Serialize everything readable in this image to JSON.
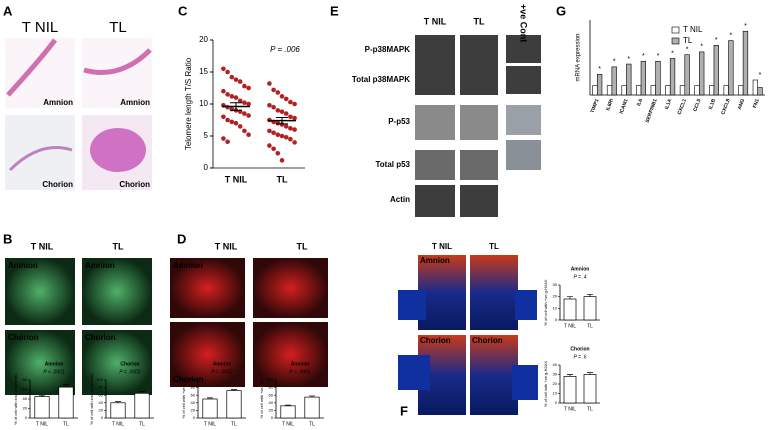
{
  "panels": {
    "A": {
      "label": "A",
      "header": [
        "T NIL",
        "TL"
      ],
      "images": [
        "Amnion",
        "Amnion",
        "Chorion",
        "Chorion"
      ]
    },
    "B": {
      "label": "B",
      "header": [
        "T NIL",
        "TL"
      ],
      "images": [
        "Amnion",
        "Amnion",
        "Chorion",
        "Chorion"
      ]
    },
    "C": {
      "label": "C"
    },
    "D": {
      "label": "D",
      "header": [
        "T NIL",
        "TL"
      ],
      "images": [
        "Amnion",
        "",
        "Chorion",
        ""
      ]
    },
    "E": {
      "label": "E",
      "columns": [
        "T NIL",
        "TL",
        "+ve Cont"
      ],
      "rows": [
        "P-p38MAPK",
        "Total p38MAPK",
        "P-p53",
        "Total p53",
        "Actin"
      ]
    },
    "F": {
      "label": "F",
      "header": [
        "T NIL",
        "TL"
      ],
      "images": [
        "Amnion",
        "",
        "Chorion",
        "Chorion"
      ]
    },
    "G": {
      "label": "G"
    }
  },
  "chart_data": [
    {
      "type": "scatter",
      "ylabel": "Telomere length T/S Ratio",
      "annotation": "P = .006",
      "categories": [
        "T NIL",
        "TL"
      ],
      "color": "#b22222",
      "values": [
        [
          15.5,
          15,
          14.2,
          13.8,
          13.5,
          12.8,
          12.5,
          12,
          11.5,
          11.2,
          11,
          10.5,
          10.2,
          10,
          9.8,
          9.5,
          9.2,
          9,
          8.8,
          8.5,
          8.2,
          8,
          7.5,
          7.2,
          7,
          6.5,
          5.8,
          5.2,
          4.6,
          4.1
        ],
        [
          13.2,
          12.2,
          11.8,
          11.2,
          10.8,
          10.3,
          10,
          9.8,
          9.5,
          9,
          8.8,
          8.5,
          8,
          7.8,
          7.5,
          7.2,
          7,
          6.8,
          6.5,
          6.2,
          6,
          5.8,
          5.5,
          5.2,
          5,
          4.8,
          4.5,
          4,
          3.5,
          3,
          2.3,
          1.2
        ]
      ],
      "means": [
        9.6,
        7.4
      ],
      "errors": [
        0.6,
        0.5
      ],
      "ylim": [
        0,
        20
      ],
      "yticks": [
        0,
        5,
        10,
        15,
        20
      ]
    },
    {
      "type": "grouped",
      "ylabel": "mRNA expression",
      "categories": [
        "TIMP1",
        "IL8RI",
        "ICAM1",
        "IL6",
        "SERPINB1",
        "IL1A",
        "CXCL1",
        "CCL5",
        "IL1B",
        "CXCL8",
        "ANG",
        "FN1"
      ],
      "series": [
        {
          "name": "T NIL",
          "color": "#ffffff",
          "values": [
            1,
            1,
            1,
            1,
            1,
            1,
            1,
            1,
            1,
            1,
            1,
            1.6
          ]
        },
        {
          "name": "TL",
          "color": "#b0b0b0",
          "values": [
            2.2,
            3,
            3.3,
            3.6,
            3.6,
            3.9,
            4.3,
            4.6,
            5.3,
            5.8,
            6.8,
            0.8
          ]
        }
      ],
      "significance": [
        "*",
        "*",
        "*",
        "*",
        "*",
        "*",
        "*",
        "*",
        "*",
        "*",
        "*",
        "*"
      ],
      "ylim": [
        0,
        8
      ]
    },
    {
      "type": "bar",
      "title": "Amnion",
      "annotation": "P < .0001",
      "ylabel": "% of cell with loss of laminB1",
      "categories": [
        "T NIL",
        "TL"
      ],
      "values": [
        45,
        65
      ],
      "errors": [
        3,
        5
      ],
      "color": "#ffffff",
      "ylim": [
        0,
        80
      ],
      "yticks": [
        0,
        20,
        40,
        60,
        80
      ]
    },
    {
      "type": "bar",
      "title": "Chorion",
      "annotation": "P = .0002",
      "ylabel": "% of cell with loss of laminB1",
      "categories": [
        "T NIL",
        "TL"
      ],
      "values": [
        40,
        65
      ],
      "errors": [
        3,
        5
      ],
      "color": "#ffffff",
      "ylim": [
        0,
        100
      ],
      "yticks": [
        0,
        20,
        40,
        60,
        80,
        100
      ]
    },
    {
      "type": "bar",
      "title": "Amnion",
      "annotation": "P = .0002",
      "ylabel": "% of cell with +ve p21",
      "categories": [
        "T NIL",
        "TL"
      ],
      "values": [
        50,
        72
      ],
      "errors": [
        3,
        3
      ],
      "color": "#ffffff",
      "ylim": [
        0,
        100
      ],
      "yticks": [
        0,
        20,
        40,
        60,
        80,
        100
      ]
    },
    {
      "type": "bar",
      "title": "Amnion",
      "annotation": "P = .0001",
      "ylabel": "% of cell with +ve p21",
      "categories": [
        "T NIL",
        "TL"
      ],
      "values": [
        32,
        55
      ],
      "errors": [
        2,
        3
      ],
      "color": "#ffffff",
      "ylim": [
        0,
        100
      ],
      "yticks": [
        0,
        20,
        40,
        60,
        80,
        100
      ]
    },
    {
      "type": "bar",
      "title": "Amnion",
      "annotation": "P = .4",
      "ylabel": "% of cell with +ve g-H2AX",
      "categories": [
        "T NIL",
        "TL"
      ],
      "values": [
        18,
        20
      ],
      "errors": [
        2,
        2
      ],
      "color": "#ffffff",
      "ylim": [
        0,
        30
      ],
      "yticks": [
        0,
        10,
        20,
        30
      ]
    },
    {
      "type": "bar",
      "title": "Chorion",
      "annotation": "P = .6",
      "ylabel": "% of cell with +ve g-H2AX",
      "categories": [
        "T NIL",
        "TL"
      ],
      "values": [
        28,
        30
      ],
      "errors": [
        2,
        2
      ],
      "color": "#ffffff",
      "ylim": [
        0,
        40
      ],
      "yticks": [
        0,
        10,
        20,
        30,
        40
      ]
    }
  ]
}
